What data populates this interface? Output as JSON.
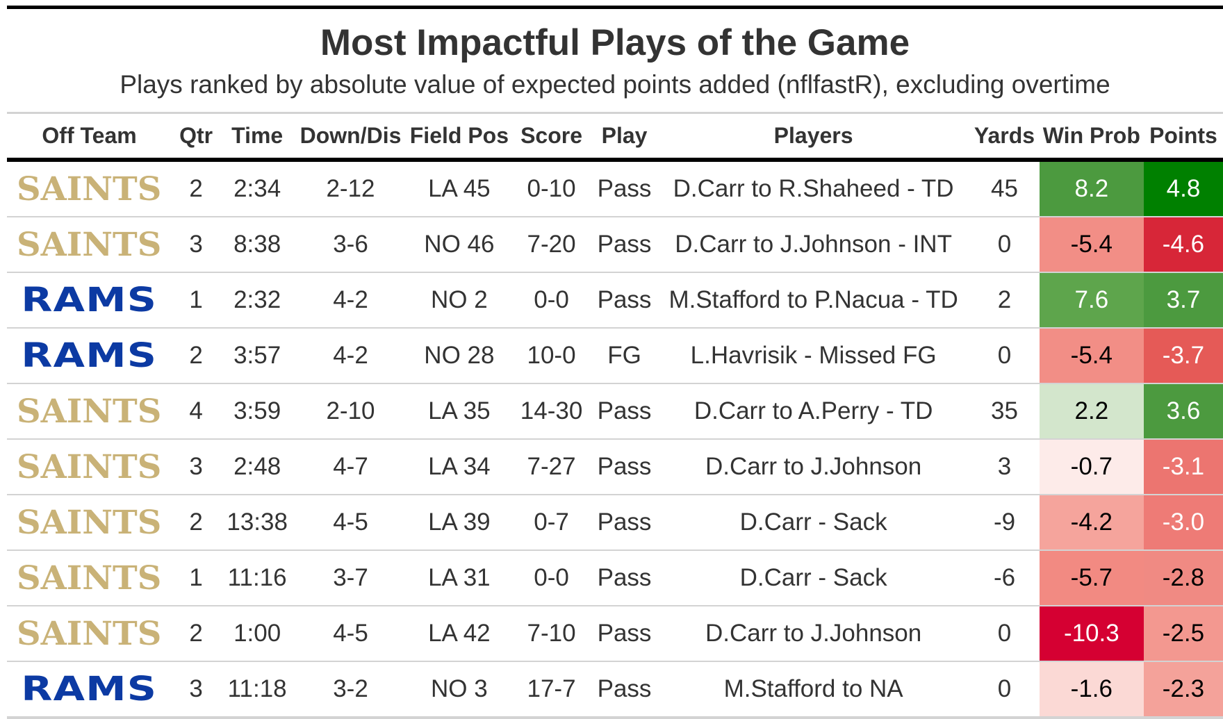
{
  "title": "Most Impactful Plays of the Game",
  "subtitle": "Plays ranked by absolute value of expected points added (nflfastR), excluding overtime",
  "columns": {
    "team": "Off Team",
    "qtr": "Qtr",
    "time": "Time",
    "down": "Down/Dis",
    "fieldpos": "Field Pos",
    "score": "Score",
    "play": "Play",
    "players": "Players",
    "yards": "Yards",
    "winprob": "Win Prob",
    "points": "Points"
  },
  "logos": {
    "saints": {
      "text": "SAINTS",
      "color": "#c9b277"
    },
    "rams": {
      "text": "RAMS",
      "color": "#0c3aa3"
    }
  },
  "chart_data": {
    "type": "table",
    "title": "Most Impactful Plays of the Game",
    "subtitle": "Plays ranked by absolute value of expected points added (nflfastR), excluding overtime",
    "rows": [
      {
        "team": "SAINTS",
        "qtr": "2",
        "time": "2:34",
        "down": "2-12",
        "fieldpos": "LA 45",
        "score": "0-10",
        "play": "Pass",
        "players": "D.Carr to R.Shaheed - TD",
        "yards": "45",
        "winprob": "8.2",
        "points": "4.8",
        "winprob_bg": "#4c9a3f",
        "winprob_fg": "#ffffff",
        "points_bg": "#008000",
        "points_fg": "#ffffff"
      },
      {
        "team": "SAINTS",
        "qtr": "3",
        "time": "8:38",
        "down": "3-6",
        "fieldpos": "NO 46",
        "score": "7-20",
        "play": "Pass",
        "players": "D.Carr to J.Johnson - INT",
        "yards": "0",
        "winprob": "-5.4",
        "points": "-4.6",
        "winprob_bg": "#f28e86",
        "winprob_fg": "#000000",
        "points_bg": "#d72638",
        "points_fg": "#ffffff"
      },
      {
        "team": "RAMS",
        "qtr": "1",
        "time": "2:32",
        "down": "4-2",
        "fieldpos": "NO 2",
        "score": "0-0",
        "play": "Pass",
        "players": "M.Stafford to P.Nacua - TD",
        "yards": "2",
        "winprob": "7.6",
        "points": "3.7",
        "winprob_bg": "#5ea54c",
        "winprob_fg": "#ffffff",
        "points_bg": "#4c9a3f",
        "points_fg": "#ffffff"
      },
      {
        "team": "RAMS",
        "qtr": "2",
        "time": "3:57",
        "down": "4-2",
        "fieldpos": "NO 28",
        "score": "10-0",
        "play": "FG",
        "players": "L.Havrisik - Missed FG",
        "yards": "0",
        "winprob": "-5.4",
        "points": "-3.7",
        "winprob_bg": "#f28e86",
        "winprob_fg": "#000000",
        "points_bg": "#e55a57",
        "points_fg": "#ffffff"
      },
      {
        "team": "SAINTS",
        "qtr": "4",
        "time": "3:59",
        "down": "2-10",
        "fieldpos": "LA 35",
        "score": "14-30",
        "play": "Pass",
        "players": "D.Carr to A.Perry - TD",
        "yards": "35",
        "winprob": "2.2",
        "points": "3.6",
        "winprob_bg": "#d3e6cc",
        "winprob_fg": "#000000",
        "points_bg": "#4c9a3f",
        "points_fg": "#ffffff"
      },
      {
        "team": "SAINTS",
        "qtr": "3",
        "time": "2:48",
        "down": "4-7",
        "fieldpos": "LA 34",
        "score": "7-27",
        "play": "Pass",
        "players": "D.Carr to J.Johnson",
        "yards": "3",
        "winprob": "-0.7",
        "points": "-3.1",
        "winprob_bg": "#fdebe9",
        "winprob_fg": "#000000",
        "points_bg": "#ec7570",
        "points_fg": "#ffffff"
      },
      {
        "team": "SAINTS",
        "qtr": "2",
        "time": "13:38",
        "down": "4-5",
        "fieldpos": "LA 39",
        "score": "0-7",
        "play": "Pass",
        "players": "D.Carr - Sack",
        "yards": "-9",
        "winprob": "-4.2",
        "points": "-3.0",
        "winprob_bg": "#f5a49c",
        "winprob_fg": "#000000",
        "points_bg": "#ee7b76",
        "points_fg": "#ffffff"
      },
      {
        "team": "SAINTS",
        "qtr": "1",
        "time": "11:16",
        "down": "3-7",
        "fieldpos": "LA 31",
        "score": "0-0",
        "play": "Pass",
        "players": "D.Carr - Sack",
        "yards": "-6",
        "winprob": "-5.7",
        "points": "-2.8",
        "winprob_bg": "#f28a82",
        "winprob_fg": "#000000",
        "points_bg": "#f08a83",
        "points_fg": "#000000"
      },
      {
        "team": "SAINTS",
        "qtr": "2",
        "time": "1:00",
        "down": "4-5",
        "fieldpos": "LA 42",
        "score": "7-10",
        "play": "Pass",
        "players": "D.Carr to J.Johnson",
        "yards": "0",
        "winprob": "-10.3",
        "points": "-2.5",
        "winprob_bg": "#d50032",
        "winprob_fg": "#ffffff",
        "points_bg": "#f39890",
        "points_fg": "#000000"
      },
      {
        "team": "RAMS",
        "qtr": "3",
        "time": "11:18",
        "down": "3-2",
        "fieldpos": "NO 3",
        "score": "17-7",
        "play": "Pass",
        "players": "M.Stafford to NA",
        "yards": "0",
        "winprob": "-1.6",
        "points": "-2.3",
        "winprob_bg": "#fbd9d5",
        "winprob_fg": "#000000",
        "points_bg": "#f4a29a",
        "points_fg": "#000000"
      }
    ]
  }
}
